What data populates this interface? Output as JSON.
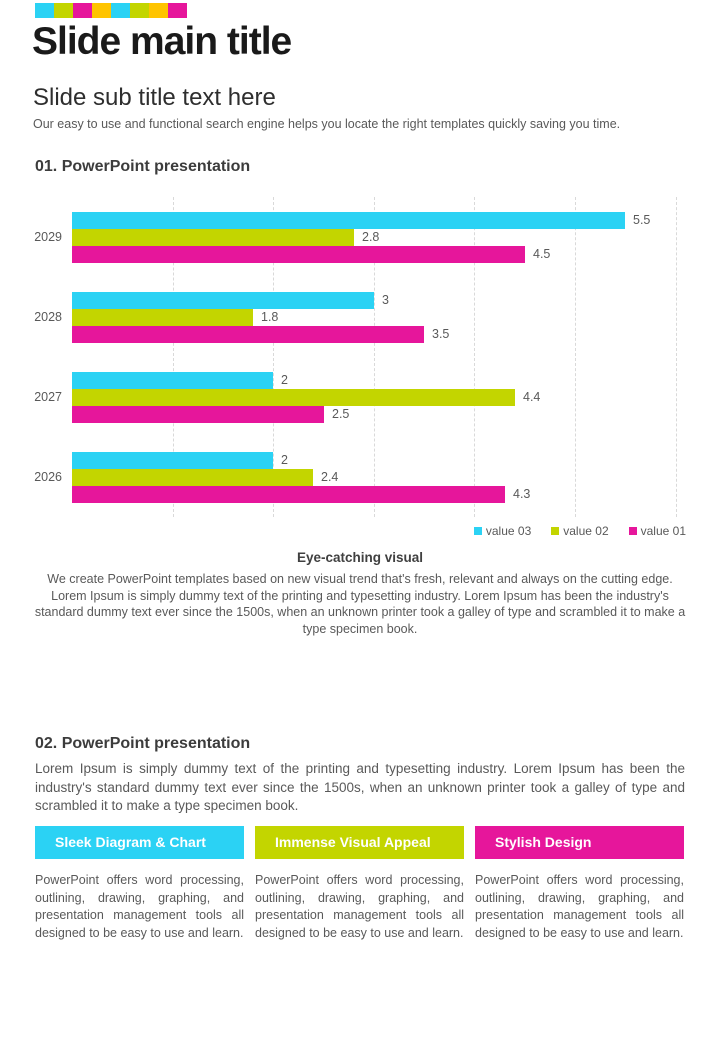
{
  "page": {
    "stripe_colors": [
      "#2BD2F4",
      "#C3D500",
      "#E6169B",
      "#FFC400",
      "#2BD2F4",
      "#C3D500",
      "#FFC400",
      "#E6169B"
    ],
    "title": "Slide main title",
    "subtitle": "Slide sub title text here",
    "intro": "Our easy to use and functional search engine  helps you locate the right templates quickly saving you time."
  },
  "section1": {
    "heading": "01. PowerPoint presentation",
    "visual_title": "Eye-catching visual",
    "visual_text": "We create PowerPoint templates based on new visual trend that's fresh, relevant and always on the cutting edge. Lorem Ipsum is simply dummy text of the printing and typesetting industry. Lorem Ipsum has been the industry's standard dummy text ever since the 1500s, when an unknown printer took a galley of type and scrambled it to make a type specimen book."
  },
  "chart_data": {
    "type": "bar",
    "orientation": "horizontal",
    "categories": [
      "2029",
      "2028",
      "2027",
      "2026"
    ],
    "series": [
      {
        "name": "value 03",
        "color": "#2BD2F4",
        "values": [
          5.5,
          3,
          2,
          2
        ]
      },
      {
        "name": "value 02",
        "color": "#C3D500",
        "values": [
          2.8,
          1.8,
          4.4,
          2.4
        ]
      },
      {
        "name": "value 01",
        "color": "#E6169B",
        "values": [
          4.5,
          3.5,
          2.5,
          4.3
        ]
      }
    ],
    "xlim": [
      0,
      6
    ],
    "gridlines": [
      1,
      2,
      3,
      4,
      5,
      6
    ],
    "grid_style": "dashed",
    "data_labels": true,
    "legend_position": "bottom-right",
    "legend": [
      {
        "label": "value 03",
        "color": "#2BD2F4"
      },
      {
        "label": "value 02",
        "color": "#C3D500"
      },
      {
        "label": "value 01",
        "color": "#E6169B"
      }
    ],
    "title": "",
    "xlabel": "",
    "ylabel": ""
  },
  "section2": {
    "heading": "02. PowerPoint presentation",
    "paragraph": "Lorem Ipsum is simply dummy text of the printing and typesetting industry. Lorem Ipsum has been the industry's standard dummy text ever since the 1500s, when an unknown printer took a galley of type and scrambled it to make a type specimen book.",
    "columns": [
      {
        "header": "Sleek Diagram & Chart",
        "color": "#2BD2F4",
        "text": "PowerPoint offers word processing, outlining, drawing, graphing, and presentation management tools all designed to be easy to use and learn."
      },
      {
        "header": "Immense Visual Appeal",
        "color": "#C3D500",
        "text": "PowerPoint offers word processing, outlining, drawing, graphing, and presentation management tools all designed to be easy to use and learn."
      },
      {
        "header": "Stylish Design",
        "color": "#E6169B",
        "text": "PowerPoint offers word processing, outlining, drawing, graphing, and presentation management tools all designed to be easy to use and learn."
      }
    ]
  }
}
